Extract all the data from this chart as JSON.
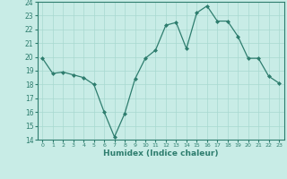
{
  "x": [
    0,
    1,
    2,
    3,
    4,
    5,
    6,
    7,
    8,
    9,
    10,
    11,
    12,
    13,
    14,
    15,
    16,
    17,
    18,
    19,
    20,
    21,
    22,
    23
  ],
  "y": [
    19.9,
    18.8,
    18.9,
    18.7,
    18.5,
    18.0,
    16.0,
    14.2,
    15.9,
    18.4,
    19.9,
    20.5,
    22.3,
    22.5,
    20.6,
    23.2,
    23.7,
    22.6,
    22.6,
    21.5,
    19.9,
    19.9,
    18.6,
    18.1
  ],
  "xlabel": "Humidex (Indice chaleur)",
  "ylim": [
    14,
    24
  ],
  "xlim": [
    -0.5,
    23.5
  ],
  "yticks": [
    14,
    15,
    16,
    17,
    18,
    19,
    20,
    21,
    22,
    23,
    24
  ],
  "xticks": [
    0,
    1,
    2,
    3,
    4,
    5,
    6,
    7,
    8,
    9,
    10,
    11,
    12,
    13,
    14,
    15,
    16,
    17,
    18,
    19,
    20,
    21,
    22,
    23
  ],
  "line_color": "#2e7d6e",
  "marker_color": "#2e7d6e",
  "bg_color": "#c8ece6",
  "grid_color": "#a8d8d0",
  "figsize": [
    3.2,
    2.0
  ],
  "dpi": 100
}
